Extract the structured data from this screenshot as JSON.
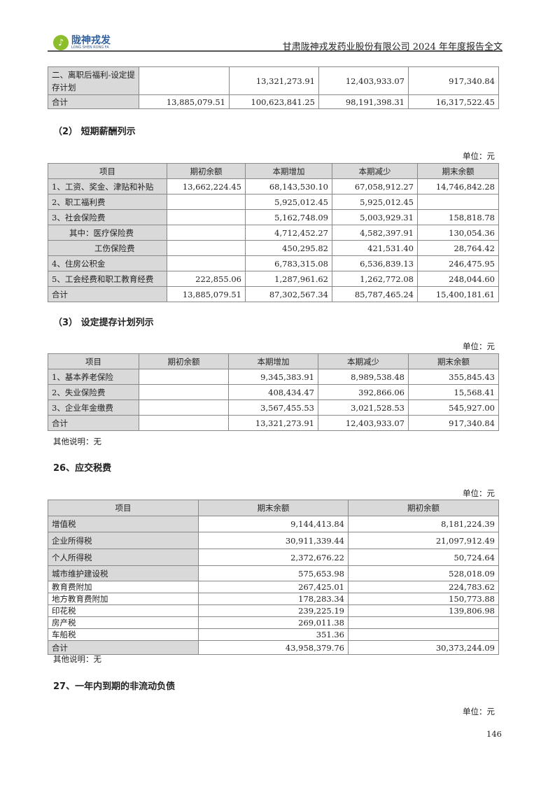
{
  "header": {
    "logo_cn": "陇神戎发",
    "logo_en": "LONG SHEN RONG FA",
    "title": "甘肃陇神戎发药业股份有限公司 2024 年年度报告全文"
  },
  "table_top": {
    "rows": [
      [
        "二、离职后福利-设定提存计划",
        "",
        "13,321,273.91",
        "12,403,933.07",
        "917,340.84"
      ],
      [
        "合计",
        "13,885,079.51",
        "100,623,841.25",
        "98,191,398.31",
        "16,317,522.45"
      ]
    ]
  },
  "sec2": {
    "title": "（2） 短期薪酬列示",
    "unit": "单位：元",
    "columns": [
      "项目",
      "期初余额",
      "本期增加",
      "本期减少",
      "期末余额"
    ],
    "rows": [
      [
        "1、工资、奖金、津贴和补贴",
        "13,662,224.45",
        "68,143,530.10",
        "67,058,912.27",
        "14,746,842.28"
      ],
      [
        "2、职工福利费",
        "",
        "5,925,012.45",
        "5,925,012.45",
        ""
      ],
      [
        "3、社会保险费",
        "",
        "5,162,748.09",
        "5,003,929.31",
        "158,818.78"
      ],
      [
        "其中：医疗保险费",
        "",
        "4,712,452.27",
        "4,582,397.91",
        "130,054.36"
      ],
      [
        "工伤保险费",
        "",
        "450,295.82",
        "421,531.40",
        "28,764.42"
      ],
      [
        "4、住房公积金",
        "",
        "6,783,315.08",
        "6,536,839.13",
        "246,475.95"
      ],
      [
        "5、工会经费和职工教育经费",
        "222,855.06",
        "1,287,961.62",
        "1,262,772.08",
        "248,044.60"
      ],
      [
        "合计",
        "13,885,079.51",
        "87,302,567.34",
        "85,787,465.24",
        "15,400,181.61"
      ]
    ]
  },
  "sec3": {
    "title": "（3） 设定提存计划列示",
    "unit": "单位：元",
    "columns": [
      "项目",
      "期初余额",
      "本期增加",
      "本期减少",
      "期末余额"
    ],
    "rows": [
      [
        "1、基本养老保险",
        "",
        "9,345,383.91",
        "8,989,538.48",
        "355,845.43"
      ],
      [
        "2、失业保险费",
        "",
        "408,434.47",
        "392,866.06",
        "15,568.41"
      ],
      [
        "3、企业年金缴费",
        "",
        "3,567,455.53",
        "3,021,528.53",
        "545,927.00"
      ],
      [
        "合计",
        "",
        "13,321,273.91",
        "12,403,933.07",
        "917,340.84"
      ]
    ],
    "note": "其他说明：无"
  },
  "sec26": {
    "title": "26、应交税费",
    "unit": "单位：元",
    "columns": [
      "项目",
      "期末余额",
      "期初余额"
    ],
    "rows": [
      [
        "增值税",
        "9,144,413.84",
        "8,181,224.39"
      ],
      [
        "企业所得税",
        "30,911,339.44",
        "21,097,912.49"
      ],
      [
        "个人所得税",
        "2,372,676.22",
        "50,724.64"
      ],
      [
        "城市维护建设税",
        "575,653.98",
        "528,018.09"
      ],
      [
        "教育费附加",
        "267,425.01",
        "224,783.62"
      ],
      [
        "地方教育费附加",
        "178,283.34",
        "150,773.88"
      ],
      [
        "印花税",
        "239,225.19",
        "139,806.98"
      ],
      [
        "房产税",
        "269,011.38",
        ""
      ],
      [
        "车船税",
        "351.36",
        ""
      ],
      [
        "合计",
        "43,958,379.76",
        "30,373,244.09"
      ]
    ],
    "note": "其他说明：无"
  },
  "sec27": {
    "title": "27、一年内到期的非流动负债",
    "unit": "单位：元"
  },
  "footer": {
    "page_number": "146"
  }
}
